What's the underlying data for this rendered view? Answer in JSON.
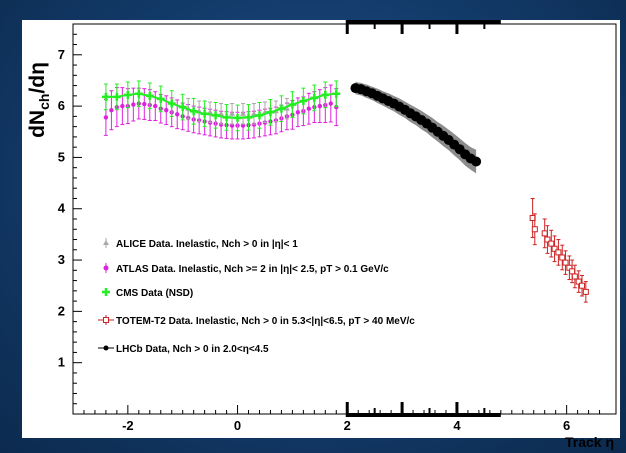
{
  "chart_data": {
    "type": "scatter",
    "xlabel": "Track η",
    "ylabel": "dN_ch/dη",
    "xlim": [
      -3.0,
      6.9
    ],
    "ylim": [
      0,
      7.6
    ],
    "x_ticks": [
      -2,
      0,
      2,
      4,
      6
    ],
    "y_ticks": [
      1,
      2,
      3,
      4,
      5,
      6,
      7
    ],
    "grid": false,
    "legend_position": "left",
    "legend_entries": [
      "ALICE Data. Inelastic, Nch > 0 in |η|< 1",
      "ATLAS Data. Inelastic, Nch >= 2 in  |η|< 2.5, pT > 0.1 GeV/c",
      "CMS Data (NSD)",
      "TOTEM-T2 Data. Inelastic, Nch > 0 in 5.3<|η|<6.5, pT > 40 MeV/c",
      "LHCb Data, Nch > 0 in 2.0<η<4.5"
    ],
    "series": [
      {
        "name": "ALICE Data. Inelastic, Nch > 0 in |η|< 1",
        "color": "#a9a9a9",
        "marker": "triangle",
        "x": [
          -0.9,
          -0.7,
          -0.5,
          -0.3,
          -0.1,
          0.1,
          0.3,
          0.5,
          0.7,
          0.9
        ],
        "y": [
          5.95,
          5.9,
          5.88,
          5.85,
          5.85,
          5.85,
          5.85,
          5.88,
          5.9,
          5.95
        ],
        "err": [
          0.2,
          0.2,
          0.2,
          0.2,
          0.2,
          0.2,
          0.2,
          0.2,
          0.2,
          0.2
        ]
      },
      {
        "name": "ATLAS Data. Inelastic, Nch >= 2 in  |η|< 2.5, pT > 0.1 GeV/c",
        "color": "#dd22dd",
        "marker": "circle",
        "x": [
          -2.4,
          -2.3,
          -2.2,
          -2.1,
          -2.0,
          -1.9,
          -1.8,
          -1.7,
          -1.6,
          -1.5,
          -1.4,
          -1.3,
          -1.2,
          -1.1,
          -1.0,
          -0.9,
          -0.8,
          -0.7,
          -0.6,
          -0.5,
          -0.4,
          -0.3,
          -0.2,
          -0.1,
          0.0,
          0.1,
          0.2,
          0.3,
          0.4,
          0.5,
          0.6,
          0.7,
          0.8,
          0.9,
          1.0,
          1.1,
          1.2,
          1.3,
          1.4,
          1.5,
          1.6,
          1.7,
          1.8
        ],
        "y": [
          5.78,
          5.92,
          5.98,
          6.0,
          6.0,
          6.03,
          6.05,
          6.04,
          6.02,
          6.0,
          5.95,
          5.92,
          5.88,
          5.84,
          5.8,
          5.77,
          5.74,
          5.72,
          5.7,
          5.68,
          5.66,
          5.64,
          5.63,
          5.62,
          5.62,
          5.62,
          5.63,
          5.64,
          5.66,
          5.68,
          5.7,
          5.72,
          5.76,
          5.8,
          5.83,
          5.88,
          5.9,
          5.95,
          5.98,
          6.0,
          6.02,
          6.05,
          5.98
        ],
        "err": [
          0.35,
          0.38,
          0.38,
          0.36,
          0.34,
          0.32,
          0.3,
          0.3,
          0.3,
          0.28,
          0.28,
          0.28,
          0.28,
          0.28,
          0.26,
          0.26,
          0.26,
          0.26,
          0.26,
          0.26,
          0.26,
          0.26,
          0.26,
          0.26,
          0.26,
          0.26,
          0.26,
          0.26,
          0.26,
          0.26,
          0.26,
          0.26,
          0.26,
          0.26,
          0.28,
          0.28,
          0.28,
          0.3,
          0.3,
          0.32,
          0.34,
          0.36,
          0.36
        ]
      },
      {
        "name": "CMS Data (NSD)",
        "color": "#22ee22",
        "marker": "cross",
        "x": [
          -2.4,
          -2.2,
          -2.0,
          -1.8,
          -1.6,
          -1.4,
          -1.2,
          -1.0,
          -0.8,
          -0.6,
          -0.4,
          -0.2,
          0.0,
          0.2,
          0.4,
          0.6,
          0.8,
          1.0,
          1.2,
          1.4,
          1.6,
          1.8
        ],
        "y": [
          6.18,
          6.18,
          6.22,
          6.24,
          6.2,
          6.14,
          6.05,
          5.98,
          5.9,
          5.85,
          5.82,
          5.78,
          5.77,
          5.78,
          5.82,
          5.88,
          5.95,
          6.03,
          6.1,
          6.16,
          6.22,
          6.24
        ],
        "err": [
          0.25,
          0.25,
          0.25,
          0.25,
          0.25,
          0.25,
          0.25,
          0.25,
          0.25,
          0.25,
          0.25,
          0.25,
          0.25,
          0.25,
          0.25,
          0.25,
          0.25,
          0.25,
          0.25,
          0.25,
          0.25,
          0.25
        ]
      },
      {
        "name": "TOTEM-T2 Data. Inelastic, Nch > 0 in 5.3<|η|<6.5, pT > 40 MeV/c",
        "color": "#cc2222",
        "marker": "open-square",
        "x": [
          5.38,
          5.42,
          5.6,
          5.65,
          5.72,
          5.78,
          5.85,
          5.92,
          5.98,
          6.05,
          6.1,
          6.15,
          6.22,
          6.28,
          6.35
        ],
        "y": [
          3.82,
          3.6,
          3.52,
          3.4,
          3.32,
          3.22,
          3.15,
          3.05,
          2.95,
          2.85,
          2.78,
          2.68,
          2.58,
          2.5,
          2.38
        ],
        "err": [
          0.38,
          0.3,
          0.28,
          0.27,
          0.26,
          0.25,
          0.25,
          0.24,
          0.23,
          0.23,
          0.22,
          0.22,
          0.21,
          0.2,
          0.2
        ]
      },
      {
        "name": "LHCb Data, Nch > 0 in 2.0<η<4.5",
        "color": "#000000",
        "marker": "filled-circle",
        "x": [
          2.15,
          2.25,
          2.35,
          2.45,
          2.55,
          2.65,
          2.75,
          2.85,
          2.95,
          3.05,
          3.15,
          3.25,
          3.35,
          3.45,
          3.55,
          3.65,
          3.75,
          3.85,
          3.95,
          4.05,
          4.15,
          4.25,
          4.35
        ],
        "y": [
          6.35,
          6.33,
          6.29,
          6.25,
          6.2,
          6.15,
          6.1,
          6.05,
          5.99,
          5.93,
          5.86,
          5.8,
          5.73,
          5.66,
          5.58,
          5.5,
          5.42,
          5.34,
          5.25,
          5.16,
          5.06,
          4.98,
          4.92
        ],
        "band": [
          0.12,
          0.12,
          0.13,
          0.13,
          0.14,
          0.14,
          0.15,
          0.15,
          0.16,
          0.16,
          0.17,
          0.17,
          0.18,
          0.18,
          0.19,
          0.19,
          0.2,
          0.2,
          0.21,
          0.21,
          0.22,
          0.22,
          0.23
        ]
      }
    ]
  }
}
